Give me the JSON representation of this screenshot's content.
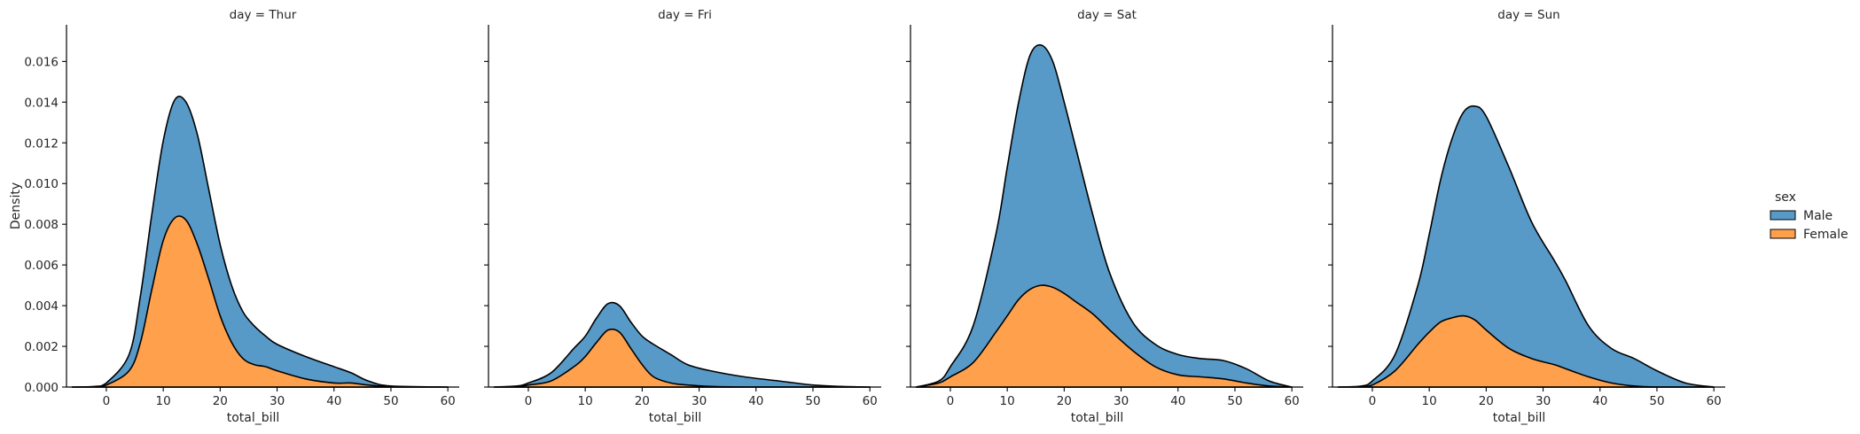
{
  "chart_data": {
    "type": "area",
    "kind": "stacked-kde",
    "xlabel": "total_bill",
    "ylabel": "Density",
    "xlim": [
      -7,
      62
    ],
    "ylim": [
      0,
      0.0178
    ],
    "x_ticks": [
      0,
      10,
      20,
      30,
      40,
      50,
      60
    ],
    "y_ticks": [
      0.0,
      0.002,
      0.004,
      0.006,
      0.008,
      0.01,
      0.012,
      0.014,
      0.016
    ],
    "y_tick_labels": [
      "0.000",
      "0.002",
      "0.004",
      "0.006",
      "0.008",
      "0.010",
      "0.012",
      "0.014",
      "0.016"
    ],
    "legend": {
      "title": "sex",
      "placement": "right",
      "entries": [
        {
          "label": "Male",
          "color": "#5799c7"
        },
        {
          "label": "Female",
          "color": "#ffa04c"
        }
      ]
    },
    "grid": false,
    "facets": [
      {
        "title": "day = Thur",
        "x": [
          -6,
          -2,
          0,
          4,
          6,
          8,
          10,
          12,
          14,
          16,
          18,
          20,
          22,
          24,
          26,
          28,
          30,
          35,
          40,
          43,
          46,
          50,
          60
        ],
        "female": [
          0,
          2e-05,
          0.0001,
          0.0008,
          0.0022,
          0.0048,
          0.0072,
          0.0083,
          0.0082,
          0.007,
          0.0053,
          0.0035,
          0.0022,
          0.0014,
          0.0011,
          0.001,
          0.0008,
          0.0004,
          0.0002,
          0.0002,
          0.0001,
          2e-05,
          0
        ],
        "total": [
          0,
          3e-05,
          0.0002,
          0.0016,
          0.0045,
          0.0085,
          0.0121,
          0.0141,
          0.014,
          0.0124,
          0.0097,
          0.007,
          0.005,
          0.0037,
          0.003,
          0.0025,
          0.0021,
          0.0015,
          0.001,
          0.0007,
          0.0003,
          5e-05,
          0
        ]
      },
      {
        "title": "day = Fri",
        "x": [
          -6,
          -2,
          0,
          4,
          8,
          10,
          12,
          14,
          16,
          18,
          20,
          22,
          25,
          28,
          32,
          38,
          44,
          50,
          55,
          60
        ],
        "female": [
          0,
          2e-05,
          0.0001,
          0.0003,
          0.001,
          0.0015,
          0.0022,
          0.0028,
          0.0027,
          0.0019,
          0.0011,
          0.0005,
          0.0002,
          0.0001,
          3e-05,
          0,
          0,
          0,
          0,
          0
        ],
        "total": [
          0,
          5e-05,
          0.0002,
          0.0007,
          0.0019,
          0.0025,
          0.0034,
          0.0041,
          0.004,
          0.0032,
          0.0025,
          0.0021,
          0.0016,
          0.0011,
          0.0008,
          0.0005,
          0.0003,
          0.0001,
          3e-05,
          0
        ]
      },
      {
        "title": "day = Sat",
        "x": [
          -6,
          -2,
          0,
          4,
          8,
          10,
          12,
          14,
          16,
          18,
          20,
          22,
          25,
          28,
          32,
          36,
          40,
          44,
          48,
          52,
          56,
          60
        ],
        "female": [
          0,
          0.0002,
          0.0005,
          0.0012,
          0.0027,
          0.0035,
          0.0043,
          0.0048,
          0.005,
          0.0049,
          0.0046,
          0.0042,
          0.0036,
          0.0028,
          0.0018,
          0.001,
          0.0006,
          0.0005,
          0.0004,
          0.0002,
          5e-05,
          0
        ],
        "total": [
          0,
          0.0003,
          0.001,
          0.003,
          0.0075,
          0.0108,
          0.014,
          0.0163,
          0.0168,
          0.016,
          0.014,
          0.0118,
          0.0085,
          0.0056,
          0.0032,
          0.0021,
          0.0016,
          0.0014,
          0.0013,
          0.0009,
          0.0003,
          0
        ]
      },
      {
        "title": "day = Sun",
        "x": [
          -6,
          -2,
          0,
          4,
          8,
          10,
          12,
          14,
          16,
          18,
          20,
          24,
          28,
          32,
          34,
          38,
          42,
          46,
          50,
          55,
          60
        ],
        "female": [
          0,
          2e-05,
          0.0001,
          0.0008,
          0.0021,
          0.0027,
          0.0032,
          0.0034,
          0.0035,
          0.0033,
          0.0028,
          0.0019,
          0.0014,
          0.0011,
          0.0009,
          0.0005,
          0.0002,
          5e-05,
          0,
          0,
          0
        ],
        "total": [
          0,
          5e-05,
          0.0003,
          0.0016,
          0.005,
          0.0075,
          0.0102,
          0.0122,
          0.0135,
          0.0138,
          0.0133,
          0.0108,
          0.0081,
          0.0062,
          0.0052,
          0.003,
          0.0019,
          0.0014,
          0.0008,
          0.0002,
          0
        ]
      }
    ]
  }
}
